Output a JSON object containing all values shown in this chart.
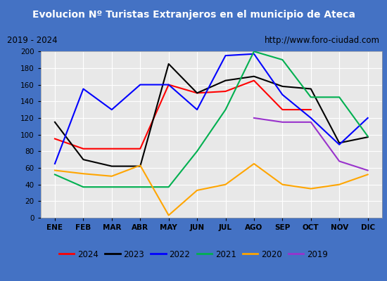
{
  "title": "Evolucion Nº Turistas Extranjeros en el municipio de Ateca",
  "subtitle_left": "2019 - 2024",
  "subtitle_right": "http://www.foro-ciudad.com",
  "title_bg_color": "#4472c4",
  "title_text_color": "#ffffff",
  "months": [
    "ENE",
    "FEB",
    "MAR",
    "ABR",
    "MAY",
    "JUN",
    "JUL",
    "AGO",
    "SEP",
    "OCT",
    "NOV",
    "DIC"
  ],
  "series": {
    "2024": {
      "color": "#ff0000",
      "data": [
        95,
        83,
        83,
        83,
        160,
        150,
        152,
        165,
        130,
        130,
        null,
        null
      ]
    },
    "2023": {
      "color": "#000000",
      "data": [
        115,
        70,
        62,
        62,
        185,
        150,
        165,
        170,
        158,
        155,
        90,
        97
      ]
    },
    "2022": {
      "color": "#0000ff",
      "data": [
        65,
        155,
        130,
        160,
        160,
        130,
        195,
        197,
        148,
        120,
        88,
        120
      ]
    },
    "2021": {
      "color": "#00b050",
      "data": [
        52,
        37,
        37,
        37,
        37,
        80,
        130,
        200,
        190,
        145,
        145,
        98
      ]
    },
    "2020": {
      "color": "#ffa500",
      "data": [
        57,
        53,
        50,
        63,
        3,
        33,
        40,
        65,
        40,
        35,
        40,
        52
      ]
    },
    "2019": {
      "color": "#9932cc",
      "data": [
        null,
        null,
        null,
        null,
        null,
        null,
        null,
        120,
        115,
        115,
        68,
        57
      ]
    }
  },
  "ylim": [
    0,
    200
  ],
  "yticks": [
    0,
    20,
    40,
    60,
    80,
    100,
    120,
    140,
    160,
    180,
    200
  ],
  "plot_bg_color": "#e8e8e8",
  "grid_color": "#ffffff",
  "border_color": "#4472c4",
  "subtitle_bg": "#ffffff"
}
